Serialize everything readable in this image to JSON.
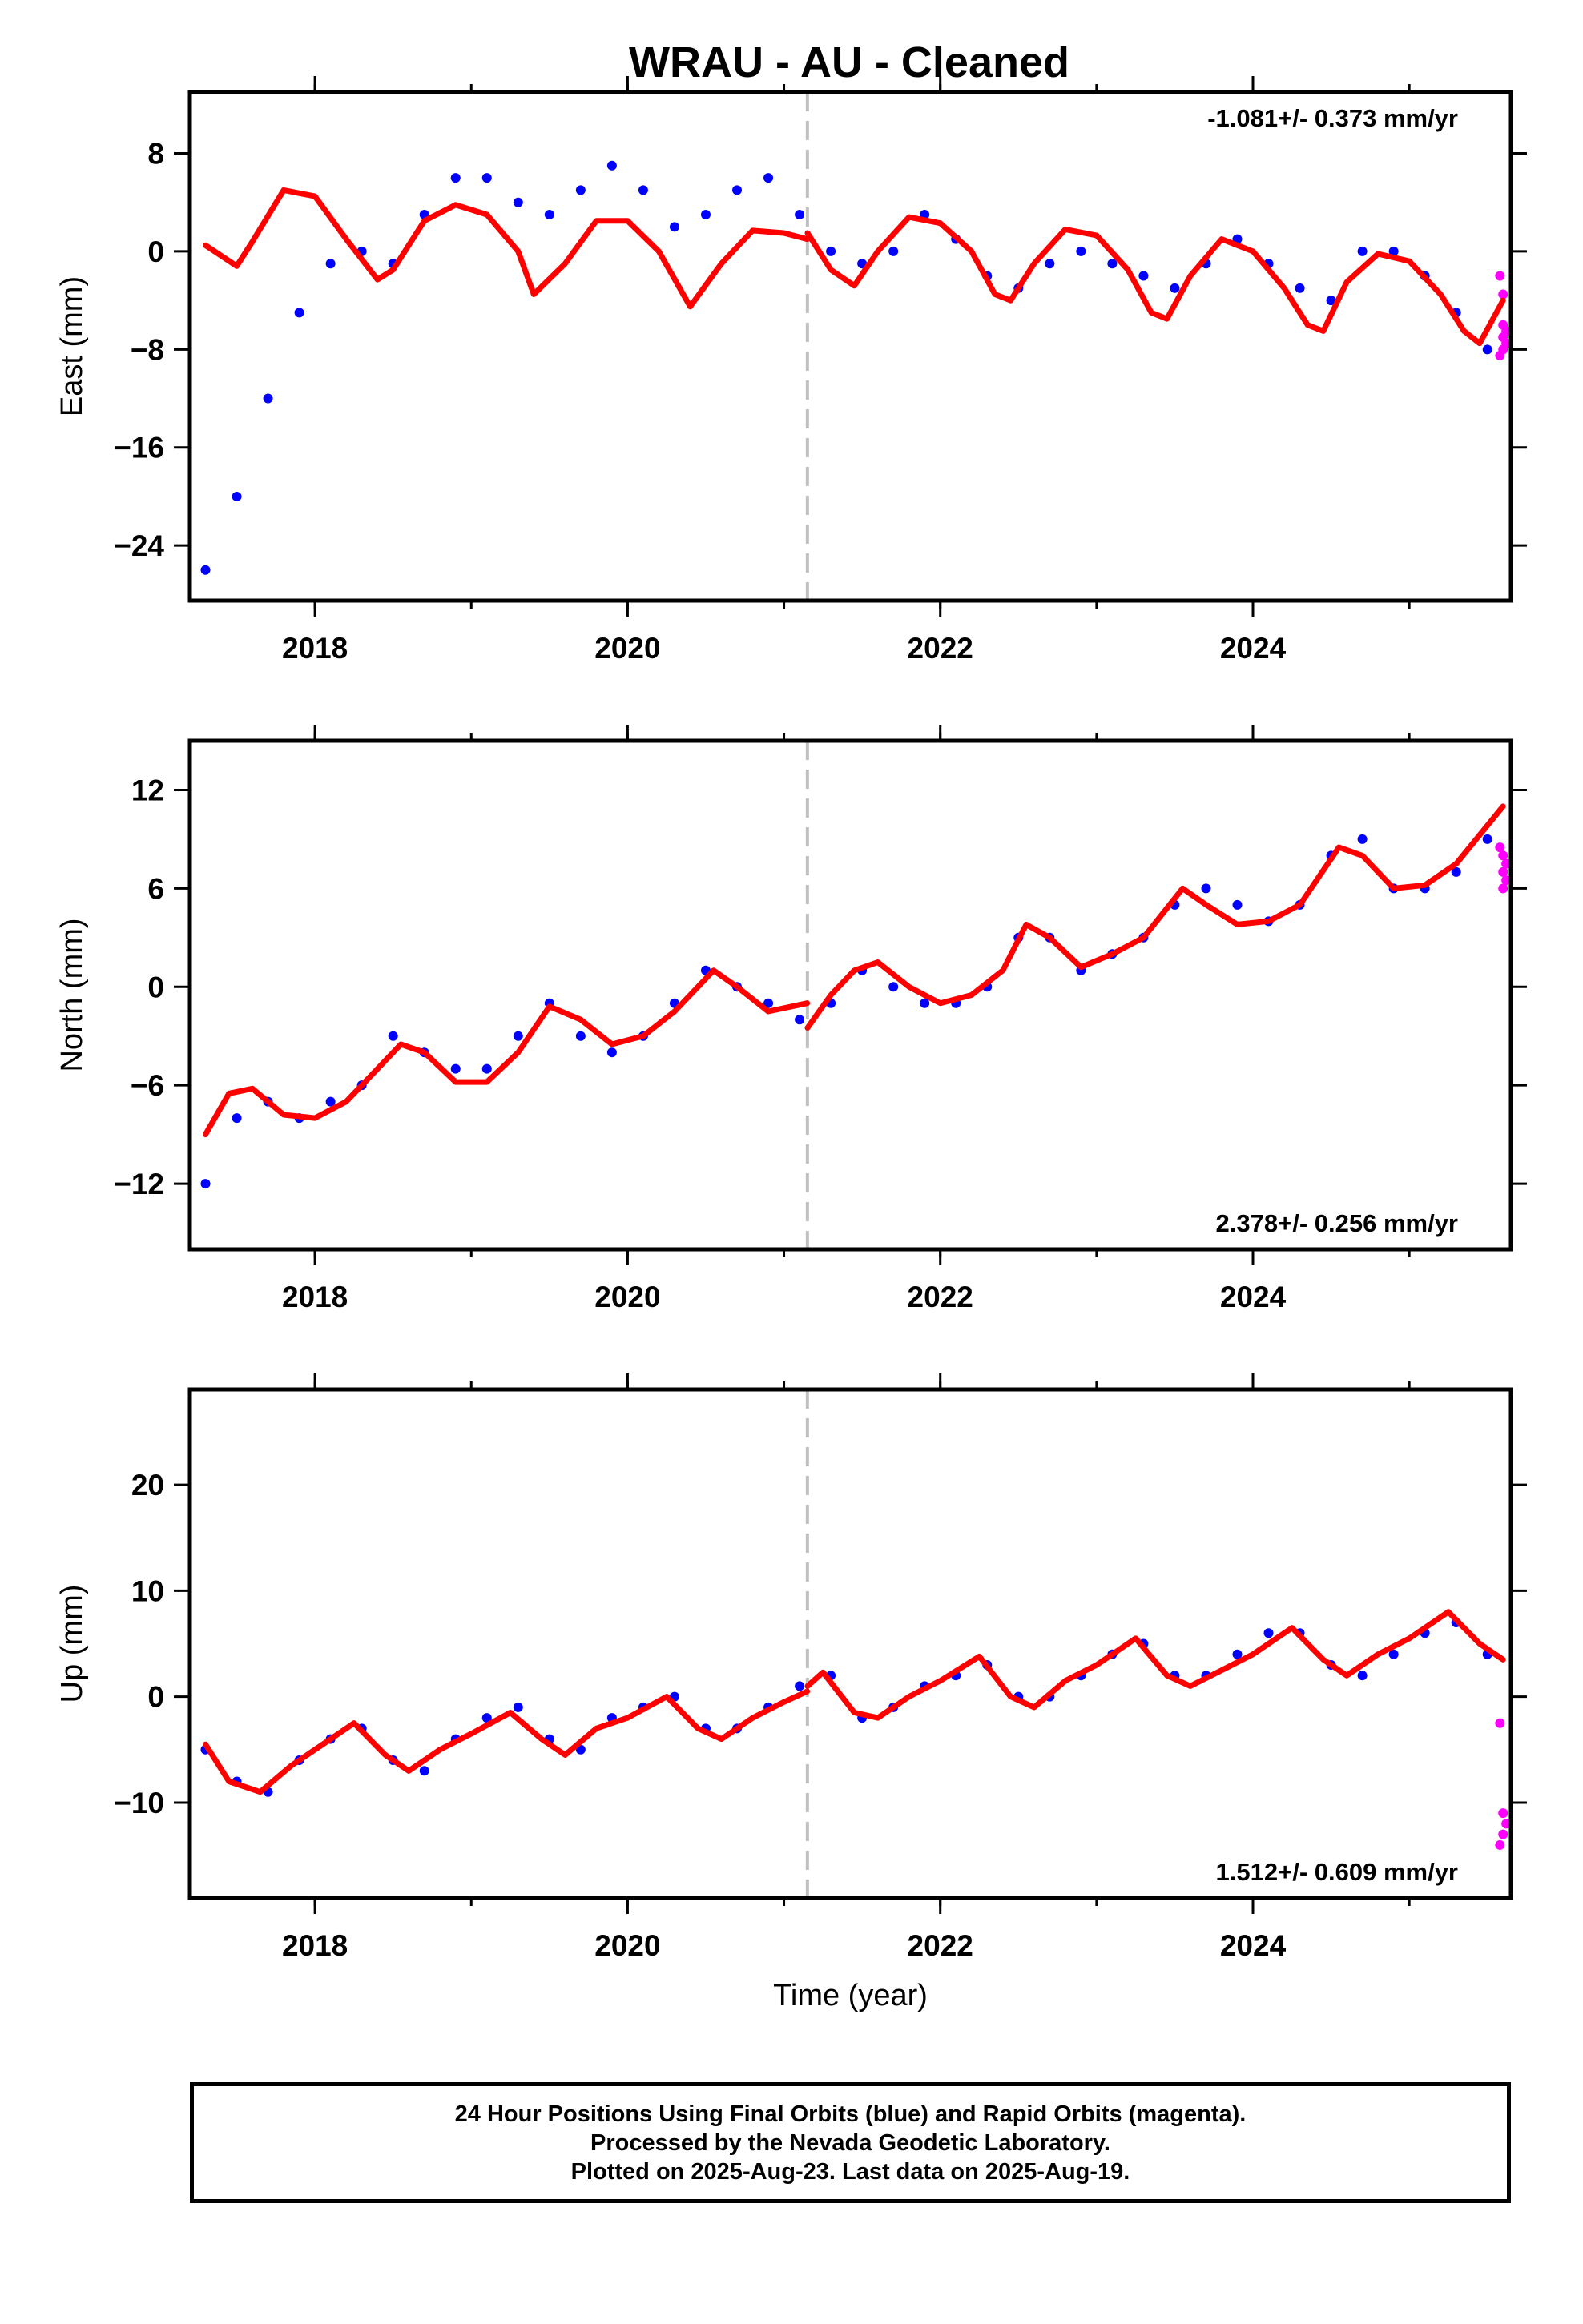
{
  "title": "WRAU  - AU - Cleaned",
  "colors": {
    "final_orbits": "#0000ff",
    "rapid_orbits": "#ff00ff",
    "model": "#ff0000",
    "break_line": "#c0c0c0"
  },
  "chart_data": [
    {
      "type": "scatter",
      "ylabel": "East (mm)",
      "rate_text": "-1.081+/- 0.373 mm/yr",
      "rate_position": "top-right",
      "xlim": [
        2017.2,
        2025.65
      ],
      "ylim": [
        -28.5,
        13
      ],
      "yticks": [
        8,
        0,
        -8,
        -16,
        -24
      ],
      "ytick_labels": [
        "8",
        "0",
        "−8",
        "−16",
        "−24"
      ],
      "xticks": [
        2018,
        2020,
        2022,
        2024
      ],
      "xtick_labels": [
        "2018",
        "2020",
        "2022",
        "2024"
      ],
      "grid": false,
      "break_epoch": 2021.15,
      "series": [
        {
          "x": [
            2017.3,
            2017.5,
            2017.7,
            2017.9,
            2018.1,
            2018.3,
            2018.5,
            2018.7,
            2018.9,
            2019.1,
            2019.3,
            2019.5,
            2019.7,
            2019.9,
            2020.1,
            2020.3,
            2020.5,
            2020.7,
            2020.9,
            2021.1,
            2021.3,
            2021.5,
            2021.7,
            2021.9,
            2022.1,
            2022.3,
            2022.5,
            2022.7,
            2022.9,
            2023.1,
            2023.3,
            2023.5,
            2023.7,
            2023.9,
            2024.1,
            2024.3,
            2024.5,
            2024.7,
            2024.9,
            2025.1,
            2025.3,
            2025.5
          ],
          "y": [
            -26,
            -20,
            -12,
            -5,
            -1,
            0,
            -1,
            3,
            6,
            6,
            4,
            3,
            5,
            7,
            5,
            2,
            3,
            5,
            6,
            3,
            0,
            -1,
            0,
            3,
            1,
            -2,
            -3,
            -1,
            0,
            -1,
            -2,
            -3,
            -1,
            1,
            -1,
            -3,
            -4,
            0,
            0,
            -2,
            -5,
            -8
          ]
        },
        {
          "x": [
            2025.58,
            2025.6,
            2025.6,
            2025.62,
            2025.6,
            2025.62,
            2025.6,
            2025.58
          ],
          "y": [
            -2,
            -3.5,
            -6,
            -6.5,
            -7,
            -7.5,
            -8,
            -8.5
          ]
        },
        {
          "x": [
            2017.3,
            2017.5,
            2017.6,
            2017.8,
            2018.0,
            2018.2,
            2018.4,
            2018.5,
            2018.7,
            2018.9,
            2019.1,
            2019.3,
            2019.4,
            2019.6,
            2019.8,
            2020.0,
            2020.2,
            2020.4,
            2020.6,
            2020.8,
            2021.0,
            2021.149
          ],
          "y": [
            0.5,
            -1.2,
            0.8,
            5,
            4.5,
            1,
            -2.3,
            -1.5,
            2.5,
            3.8,
            3,
            0,
            -3.5,
            -1,
            2.5,
            2.5,
            0,
            -4.5,
            -1,
            1.7,
            1.5,
            1
          ]
        },
        {
          "x": [
            2021.151,
            2021.3,
            2021.45,
            2021.6,
            2021.8,
            2022.0,
            2022.2,
            2022.35,
            2022.45,
            2022.6,
            2022.8,
            2023.0,
            2023.2,
            2023.35,
            2023.45,
            2023.6,
            2023.8,
            2024.0,
            2024.2,
            2024.35,
            2024.45,
            2024.6,
            2024.8,
            2025.0,
            2025.2,
            2025.35,
            2025.45,
            2025.6
          ],
          "y": [
            1.5,
            -1.5,
            -2.8,
            0,
            2.8,
            2.3,
            0,
            -3.5,
            -4,
            -1,
            1.8,
            1.3,
            -1.5,
            -5,
            -5.5,
            -2,
            1,
            0,
            -3,
            -6,
            -6.5,
            -2.5,
            -0.2,
            -0.8,
            -3.5,
            -6.5,
            -7.5,
            -4
          ]
        }
      ]
    },
    {
      "type": "scatter",
      "ylabel": "North (mm)",
      "rate_text": "2.378+/- 0.256 mm/yr",
      "rate_position": "bottom-right",
      "xlim": [
        2017.2,
        2025.65
      ],
      "ylim": [
        -16,
        15
      ],
      "yticks": [
        12,
        6,
        0,
        -6,
        -12
      ],
      "ytick_labels": [
        "12",
        "6",
        "0",
        "−6",
        "−12"
      ],
      "xticks": [
        2018,
        2020,
        2022,
        2024
      ],
      "xtick_labels": [
        "2018",
        "2020",
        "2022",
        "2024"
      ],
      "grid": false,
      "break_epoch": 2021.15,
      "series": [
        {
          "x": [
            2017.3,
            2017.5,
            2017.7,
            2017.9,
            2018.1,
            2018.3,
            2018.5,
            2018.7,
            2018.9,
            2019.1,
            2019.3,
            2019.5,
            2019.7,
            2019.9,
            2020.1,
            2020.3,
            2020.5,
            2020.7,
            2020.9,
            2021.1,
            2021.3,
            2021.5,
            2021.7,
            2021.9,
            2022.1,
            2022.3,
            2022.5,
            2022.7,
            2022.9,
            2023.1,
            2023.3,
            2023.5,
            2023.7,
            2023.9,
            2024.1,
            2024.3,
            2024.5,
            2024.7,
            2024.9,
            2025.1,
            2025.3,
            2025.5
          ],
          "y": [
            -12,
            -8,
            -7,
            -8,
            -7,
            -6,
            -3,
            -4,
            -5,
            -5,
            -3,
            -1,
            -3,
            -4,
            -3,
            -1,
            1,
            0,
            -1,
            -2,
            -1,
            1,
            0,
            -1,
            -1,
            0,
            3,
            3,
            1,
            2,
            3,
            5,
            6,
            5,
            4,
            5,
            8,
            9,
            6,
            6,
            7,
            9
          ]
        },
        {
          "x": [
            2025.58,
            2025.6,
            2025.62,
            2025.6,
            2025.62,
            2025.6
          ],
          "y": [
            8.5,
            8,
            7.5,
            7,
            6.5,
            6
          ]
        },
        {
          "x": [
            2017.3,
            2017.45,
            2017.6,
            2017.8,
            2018.0,
            2018.2,
            2018.4,
            2018.55,
            2018.7,
            2018.9,
            2019.1,
            2019.3,
            2019.5,
            2019.7,
            2019.9,
            2020.1,
            2020.3,
            2020.55,
            2020.7,
            2020.9,
            2021.149
          ],
          "y": [
            -9,
            -6.5,
            -6.2,
            -7.8,
            -8,
            -7,
            -5,
            -3.5,
            -4,
            -5.8,
            -5.8,
            -4,
            -1.2,
            -2,
            -3.5,
            -3,
            -1.5,
            1,
            0,
            -1.5,
            -1
          ]
        },
        {
          "x": [
            2021.151,
            2021.3,
            2021.45,
            2021.6,
            2021.8,
            2022.0,
            2022.2,
            2022.4,
            2022.55,
            2022.7,
            2022.9,
            2023.1,
            2023.3,
            2023.55,
            2023.7,
            2023.9,
            2024.1,
            2024.3,
            2024.55,
            2024.7,
            2024.9,
            2025.1,
            2025.3,
            2025.6
          ],
          "y": [
            -2.5,
            -0.5,
            1,
            1.5,
            0,
            -1,
            -0.5,
            1,
            3.8,
            3,
            1.2,
            2,
            3,
            6,
            5,
            3.8,
            4,
            5,
            8.5,
            8,
            6,
            6.2,
            7.5,
            11
          ]
        }
      ]
    },
    {
      "type": "scatter",
      "ylabel": "Up (mm)",
      "xlabel": "Time (year)",
      "rate_text": "1.512+/- 0.609 mm/yr",
      "rate_position": "bottom-right",
      "xlim": [
        2017.2,
        2025.65
      ],
      "ylim": [
        -19,
        29
      ],
      "yticks": [
        20,
        10,
        0,
        -10
      ],
      "ytick_labels": [
        "20",
        "10",
        "0",
        "−10"
      ],
      "xticks": [
        2018,
        2020,
        2022,
        2024
      ],
      "xtick_labels": [
        "2018",
        "2020",
        "2022",
        "2024"
      ],
      "grid": false,
      "break_epoch": 2021.15,
      "series": [
        {
          "x": [
            2017.3,
            2017.5,
            2017.7,
            2017.9,
            2018.1,
            2018.3,
            2018.5,
            2018.7,
            2018.9,
            2019.1,
            2019.3,
            2019.5,
            2019.7,
            2019.9,
            2020.1,
            2020.3,
            2020.5,
            2020.7,
            2020.9,
            2021.1,
            2021.3,
            2021.5,
            2021.7,
            2021.9,
            2022.1,
            2022.3,
            2022.5,
            2022.7,
            2022.9,
            2023.1,
            2023.3,
            2023.5,
            2023.7,
            2023.9,
            2024.1,
            2024.3,
            2024.5,
            2024.7,
            2024.9,
            2025.1,
            2025.3,
            2025.5
          ],
          "y": [
            -5,
            -8,
            -9,
            -6,
            -4,
            -3,
            -6,
            -7,
            -4,
            -2,
            -1,
            -4,
            -5,
            -2,
            -1,
            0,
            -3,
            -3,
            -1,
            1,
            2,
            -2,
            -1,
            1,
            2,
            3,
            0,
            0,
            2,
            4,
            5,
            2,
            2,
            4,
            6,
            6,
            3,
            2,
            4,
            6,
            7,
            4
          ]
        },
        {
          "x": [
            2025.58,
            2025.6,
            2025.62,
            2025.6,
            2025.58
          ],
          "y": [
            -2.5,
            -11,
            -12,
            -13,
            -14
          ]
        },
        {
          "x": [
            2017.3,
            2017.45,
            2017.65,
            2017.85,
            2018.05,
            2018.25,
            2018.45,
            2018.6,
            2018.8,
            2019.0,
            2019.25,
            2019.45,
            2019.6,
            2019.8,
            2020.0,
            2020.25,
            2020.45,
            2020.6,
            2020.8,
            2021.0,
            2021.149
          ],
          "y": [
            -4.5,
            -8,
            -9,
            -6.5,
            -4.5,
            -2.5,
            -5.5,
            -7,
            -5,
            -3.5,
            -1.5,
            -4,
            -5.5,
            -3,
            -2,
            0,
            -3,
            -4,
            -2,
            -0.5,
            0.5
          ]
        },
        {
          "x": [
            2021.151,
            2021.25,
            2021.45,
            2021.6,
            2021.8,
            2022.0,
            2022.25,
            2022.45,
            2022.6,
            2022.8,
            2023.0,
            2023.25,
            2023.45,
            2023.6,
            2023.8,
            2024.0,
            2024.25,
            2024.45,
            2024.6,
            2024.8,
            2025.0,
            2025.25,
            2025.45,
            2025.6
          ],
          "y": [
            1,
            2.3,
            -1.5,
            -2,
            0,
            1.5,
            3.8,
            0,
            -1,
            1.5,
            3,
            5.5,
            2,
            1,
            2.5,
            4,
            6.5,
            3.5,
            2,
            4,
            5.5,
            8,
            5,
            3.5
          ]
        }
      ]
    }
  ],
  "footer": {
    "line1": "24 Hour Positions Using Final Orbits (blue) and Rapid Orbits (magenta).",
    "line2": "Processed by the Nevada Geodetic Laboratory.",
    "line3": "Plotted on 2025-Aug-23. Last data on 2025-Aug-19."
  }
}
